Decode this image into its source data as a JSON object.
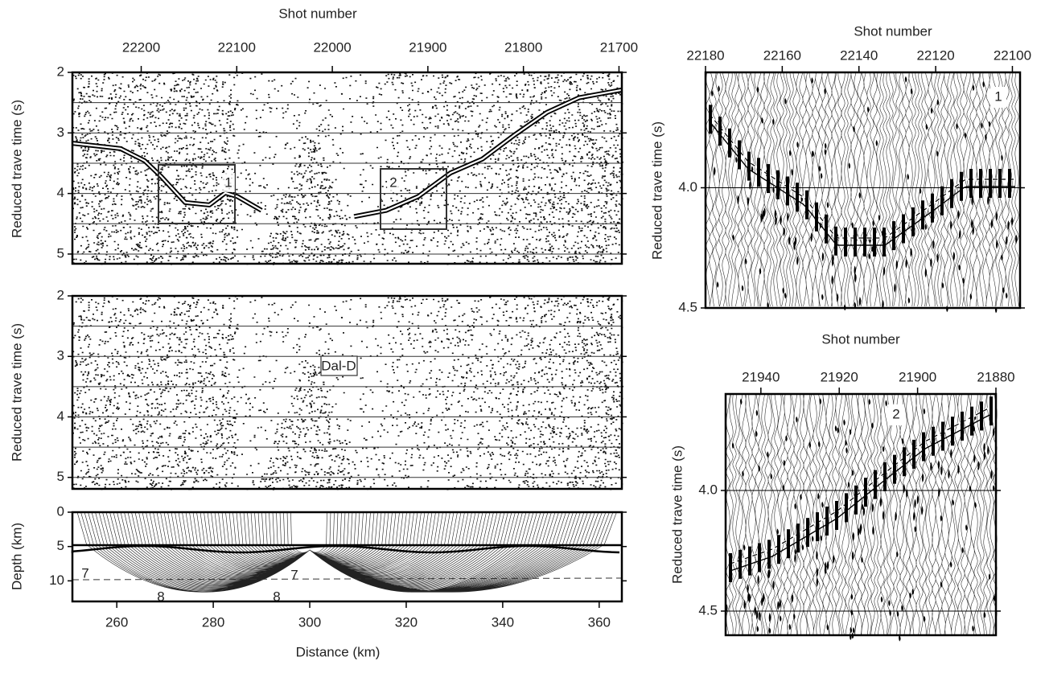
{
  "chart_data": [
    {
      "type": "seismic",
      "title": "Shot number",
      "ylabel": "Reduced trave time (s)",
      "xlim": [
        250.8,
        364.7
      ],
      "x2lim": [
        22272,
        21697
      ],
      "x2ticks": [
        22200,
        22100,
        22000,
        21900,
        21800,
        21700
      ],
      "ylim": [
        2,
        5.16
      ],
      "yticks": [
        2,
        3,
        4,
        5
      ],
      "ygrid": [
        2,
        2.5,
        3,
        3.5,
        4,
        4.5,
        5
      ],
      "y_inverted": true,
      "series": [
        {
          "color": "#000000",
          "x": [
            250.8,
            260.8,
            265.8,
            269.2,
            274.2,
            279.2,
            282.5,
            285.0,
            290.0,
            null,
            309.2,
            315.8,
            322.5,
            329.2,
            335.8,
            342.5,
            349.2,
            355.8,
            364.7
          ],
          "values": [
            3.17,
            3.26,
            3.46,
            3.72,
            4.15,
            4.19,
            3.99,
            4.05,
            4.28,
            null,
            4.38,
            4.28,
            4.05,
            3.66,
            3.43,
            3.03,
            2.66,
            2.42,
            2.29
          ]
        }
      ],
      "annotations": [
        "1",
        "2"
      ]
    },
    {
      "type": "seismic",
      "ylabel": "Reduced trave time (s)",
      "xlim": [
        250.8,
        364.7
      ],
      "ylim": [
        2,
        5.19
      ],
      "yticks": [
        2,
        3,
        4,
        5
      ],
      "ygrid": [
        2,
        2.5,
        3,
        3.5,
        4,
        4.5,
        5
      ],
      "y_inverted": true,
      "annotations": [
        "Dal-D"
      ]
    },
    {
      "type": "rays",
      "ylabel": "Depth (km)",
      "xlabel": "Distance (km)",
      "xlim": [
        250.8,
        364.7
      ],
      "xticks": [
        260,
        280,
        300,
        320,
        340,
        360
      ],
      "ylim": [
        0,
        13
      ],
      "yticks": [
        0,
        5,
        10
      ],
      "y_inverted": true,
      "annotations": [
        "7",
        "7",
        "8",
        "8"
      ]
    },
    {
      "type": "wiggle",
      "title": "Shot number",
      "ylabel": "Reduced trave time (s)",
      "xlim": [
        22180,
        22098
      ],
      "xticks": [
        22180,
        22160,
        22140,
        22120,
        22100
      ],
      "ylim": [
        3.52,
        4.5
      ],
      "yticks": [
        {
          "value": 4,
          "label": "4.0"
        },
        {
          "value": 4.5,
          "label": "4.5"
        }
      ],
      "y_inverted": true,
      "annotations": [
        "1"
      ]
    },
    {
      "type": "wiggle",
      "title": "Shot number",
      "ylabel": "Reduced trave time (s)",
      "xlim": [
        21949,
        21880
      ],
      "xticks": [
        21940,
        21920,
        21900,
        21880
      ],
      "ylim": [
        3.6,
        4.6
      ],
      "yticks": [
        {
          "value": 4,
          "label": "4.0"
        },
        {
          "value": 4.5,
          "label": "4.5"
        }
      ],
      "y_inverted": true,
      "annotations": [
        "2"
      ]
    }
  ]
}
